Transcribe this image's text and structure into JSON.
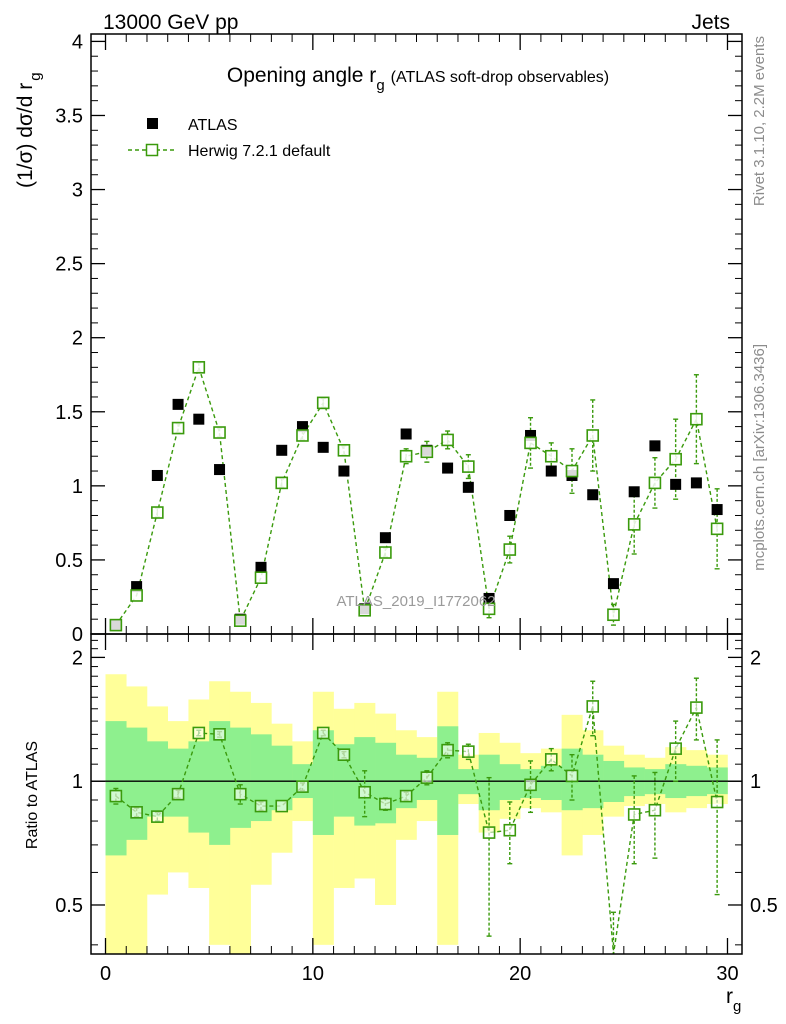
{
  "header": {
    "energy_label": "13000 GeV pp",
    "process_label": "Jets",
    "side_label_rivet": "Rivet 3.1.10,  2.2M events",
    "side_label_mcplots": "mcplots.cern.ch [arXiv:1306.3436]"
  },
  "colors": {
    "data": "#000000",
    "mc": "#3a9a0c",
    "band_inner": "#8ef08e",
    "band_outer": "#ffff99"
  },
  "chart_data": [
    {
      "type": "scatter",
      "panel": "main",
      "title": "Opening angle r",
      "title_subscript": "g",
      "title_suffix": "(ATLAS soft-drop observables)",
      "watermark": "ATLAS_2019_I1772062",
      "ylabel": "(1/σ) dσ/d r",
      "ylabel_subscript": "g",
      "xlim": [
        -0.7,
        30.7
      ],
      "ylim": [
        0,
        4.05
      ],
      "y_ticks": [
        0,
        0.5,
        1,
        1.5,
        2,
        2.5,
        3,
        3.5,
        4
      ],
      "y_tick_labels": [
        "0",
        "0.5",
        "1",
        "1.5",
        "2",
        "2.5",
        "3",
        "3.5",
        "4"
      ],
      "legend_position": "top-left",
      "x": [
        0.5,
        1.5,
        2.5,
        3.5,
        4.5,
        5.5,
        6.5,
        7.5,
        8.5,
        9.5,
        10.5,
        11.5,
        12.5,
        13.5,
        14.5,
        15.5,
        16.5,
        17.5,
        18.5,
        19.5,
        20.5,
        21.5,
        22.5,
        23.5,
        24.5,
        25.5,
        26.5,
        27.5,
        28.5,
        29.5
      ],
      "series": [
        {
          "name": "ATLAS",
          "marker": "filled-square",
          "values": [
            0.06,
            0.32,
            1.07,
            1.55,
            1.45,
            1.11,
            0.1,
            0.45,
            1.24,
            1.4,
            1.26,
            1.1,
            0.17,
            0.65,
            1.35,
            1.24,
            1.12,
            0.99,
            0.24,
            0.8,
            1.34,
            1.1,
            1.07,
            0.94,
            0.34,
            0.96,
            1.27,
            1.01,
            1.02,
            0.84
          ]
        },
        {
          "name": "Herwig 7.2.1 default",
          "marker": "open-square",
          "line": "dashed",
          "values": [
            0.06,
            0.26,
            0.82,
            1.39,
            1.8,
            1.36,
            0.09,
            0.38,
            1.02,
            1.34,
            1.56,
            1.24,
            0.16,
            0.55,
            1.2,
            1.23,
            1.31,
            1.13,
            0.17,
            0.57,
            1.29,
            1.2,
            1.1,
            1.34,
            0.13,
            0.74,
            1.02,
            1.18,
            1.45,
            0.71
          ],
          "errors": [
            0.01,
            0.02,
            0.03,
            0.03,
            0.03,
            0.03,
            0.01,
            0.02,
            0.03,
            0.03,
            0.03,
            0.03,
            0.02,
            0.03,
            0.05,
            0.07,
            0.06,
            0.08,
            0.06,
            0.09,
            0.17,
            0.09,
            0.15,
            0.24,
            0.07,
            0.2,
            0.17,
            0.27,
            0.3,
            0.27
          ]
        }
      ]
    },
    {
      "type": "scatter",
      "panel": "ratio",
      "ylabel": "Ratio to ATLAS",
      "xlabel": "r",
      "xlabel_subscript": "g",
      "scale": "log",
      "xlim": [
        -0.7,
        30.7
      ],
      "ylim": [
        0.38,
        2.28
      ],
      "x_ticks": [
        0,
        10,
        20,
        30
      ],
      "x_tick_labels": [
        "0",
        "10",
        "20",
        "30"
      ],
      "y_ticks": [
        0.5,
        1,
        2
      ],
      "y_tick_labels": [
        "0.5",
        "1",
        "2"
      ],
      "reference_line": 1,
      "bin_edges": [
        0,
        1,
        2,
        3,
        4,
        5,
        6,
        7,
        8,
        9,
        10,
        11,
        12,
        13,
        14,
        15,
        16,
        17,
        18,
        19,
        20,
        21,
        22,
        23,
        24,
        25,
        26,
        27,
        28,
        29,
        30
      ],
      "band_inner": {
        "low": [
          0.66,
          0.72,
          0.82,
          0.82,
          0.75,
          0.7,
          0.77,
          0.8,
          0.85,
          0.91,
          0.74,
          0.82,
          0.78,
          0.79,
          0.86,
          0.9,
          0.74,
          0.93,
          0.85,
          0.9,
          0.91,
          0.9,
          0.85,
          0.86,
          0.89,
          0.92,
          0.93,
          0.91,
          0.92,
          0.93
        ],
        "high": [
          1.4,
          1.35,
          1.25,
          1.2,
          1.25,
          1.4,
          1.35,
          1.3,
          1.22,
          1.1,
          1.33,
          1.23,
          1.28,
          1.24,
          1.16,
          1.14,
          1.36,
          1.07,
          1.16,
          1.1,
          1.07,
          1.09,
          1.2,
          1.16,
          1.12,
          1.08,
          1.07,
          1.1,
          1.09,
          1.08
        ]
      },
      "band_outer": {
        "low": [
          0.37,
          0.38,
          0.53,
          0.6,
          0.55,
          0.4,
          0.37,
          0.56,
          0.67,
          0.8,
          0.4,
          0.55,
          0.58,
          0.5,
          0.72,
          0.8,
          0.4,
          0.88,
          0.75,
          0.81,
          0.86,
          0.84,
          0.66,
          0.74,
          0.82,
          0.87,
          0.88,
          0.84,
          0.86,
          0.88
        ],
        "high": [
          1.82,
          1.7,
          1.52,
          1.4,
          1.58,
          1.75,
          1.65,
          1.55,
          1.38,
          1.25,
          1.65,
          1.5,
          1.55,
          1.46,
          1.33,
          1.28,
          1.65,
          1.16,
          1.31,
          1.24,
          1.17,
          1.2,
          1.45,
          1.33,
          1.22,
          1.16,
          1.14,
          1.21,
          1.19,
          1.16
        ]
      },
      "series": [
        {
          "name": "Herwig 7.2.1 default",
          "values": [
            0.92,
            0.84,
            0.82,
            0.93,
            1.31,
            1.3,
            0.93,
            0.87,
            0.87,
            0.97,
            1.31,
            1.16,
            0.94,
            0.88,
            0.92,
            1.02,
            1.19,
            1.18,
            0.75,
            0.76,
            0.98,
            1.13,
            1.03,
            1.52,
            0.36,
            0.83,
            0.85,
            1.2,
            1.51,
            0.89
          ],
          "err_low": [
            0.04,
            0.02,
            0.02,
            0.02,
            0.02,
            0.02,
            0.05,
            0.02,
            0.01,
            0.02,
            0.02,
            0.02,
            0.12,
            0.03,
            0.02,
            0.04,
            0.05,
            0.05,
            0.33,
            0.13,
            0.14,
            0.07,
            0.13,
            0.23,
            0.12,
            0.2,
            0.2,
            0.2,
            0.25,
            0.36
          ],
          "err_high": [
            0.04,
            0.02,
            0.02,
            0.02,
            0.02,
            0.02,
            0.05,
            0.02,
            0.01,
            0.02,
            0.02,
            0.02,
            0.12,
            0.03,
            0.02,
            0.04,
            0.05,
            0.05,
            0.27,
            0.13,
            0.14,
            0.07,
            0.13,
            0.23,
            0.12,
            0.2,
            0.2,
            0.2,
            0.27,
            0.37
          ]
        }
      ]
    }
  ]
}
